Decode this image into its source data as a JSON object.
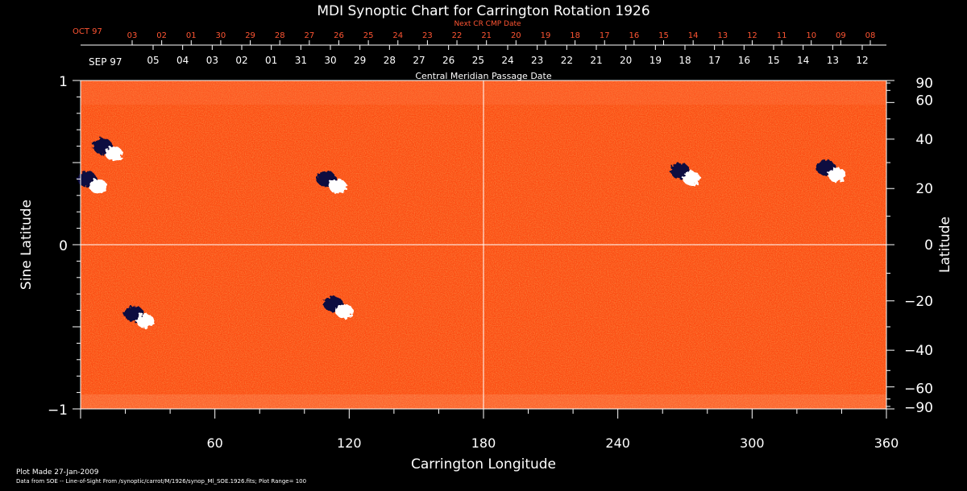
{
  "chart_data": {
    "type": "heatmap",
    "title": "MDI Synoptic Chart for Carrington Rotation 1926",
    "xlabel": "Carrington Longitude",
    "ylabel_left": "Sine Latitude",
    "ylabel_right": "Latitude",
    "xlim": [
      0,
      360
    ],
    "ylim": [
      -1,
      1
    ],
    "x_ticks": [
      60,
      120,
      180,
      240,
      300,
      360
    ],
    "y_ticks_left": [
      1,
      0,
      -1
    ],
    "y_ticks_right": [
      90,
      60,
      40,
      20,
      0,
      -20,
      -40,
      -60,
      -90
    ],
    "y_tick_labels_left": [
      "1",
      "0",
      "−1"
    ],
    "y_tick_labels_right": [
      "90",
      "60",
      "40",
      "20",
      "0",
      "−20",
      "−40",
      "−60",
      "−90"
    ],
    "colors": {
      "background": "#ff4a10",
      "positive": "#ffffff",
      "negative": "#0a0a40"
    },
    "top_axis_label": "Central Meridian Passage Date",
    "top_axis_month_labels": [
      "SEP 97"
    ],
    "top_axis_dates": [
      "05",
      "04",
      "03",
      "02",
      "01",
      "31",
      "30",
      "29",
      "28",
      "27",
      "26",
      "25",
      "24",
      "23",
      "22",
      "21",
      "20",
      "19",
      "18",
      "17",
      "16",
      "15",
      "14",
      "13",
      "12"
    ],
    "next_cr_label": "Next CR CMP Date",
    "next_cr_month_label": "OCT 97",
    "next_cr_dates": [
      "03",
      "02",
      "01",
      "30",
      "29",
      "28",
      "27",
      "26",
      "25",
      "24",
      "23",
      "22",
      "21",
      "20",
      "19",
      "18",
      "17",
      "16",
      "15",
      "14",
      "13",
      "12",
      "11",
      "10",
      "09",
      "08"
    ],
    "features": [
      {
        "lon": 12,
        "sinlat": 0.58,
        "polarity": "mixed"
      },
      {
        "lon": 5,
        "sinlat": 0.38,
        "polarity": "mixed"
      },
      {
        "lon": 112,
        "sinlat": 0.38,
        "polarity": "mixed"
      },
      {
        "lon": 270,
        "sinlat": 0.43,
        "polarity": "mixed"
      },
      {
        "lon": 335,
        "sinlat": 0.45,
        "polarity": "mixed"
      },
      {
        "lon": 26,
        "sinlat": -0.44,
        "polarity": "mixed"
      },
      {
        "lon": 115,
        "sinlat": -0.38,
        "polarity": "mixed"
      }
    ]
  },
  "footer": {
    "plot_made": "Plot Made 27-Jan-2009",
    "data_source": "Data from SOE -- Line-of-Sight From /synoptic/carrot/M/1926/synop_Ml_SOE.1926.fits; Plot Range=  100"
  }
}
